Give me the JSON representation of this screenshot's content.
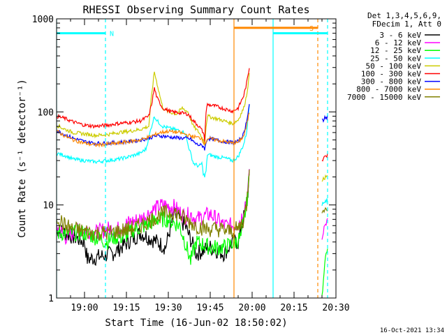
{
  "chart_data": {
    "type": "line",
    "title": "RHESSI Observing Summary Count Rates",
    "xlabel": "Start Time (16-Jun-02 18:50:02)",
    "ylabel": "Count Rate (s⁻¹ detector⁻¹)",
    "yscale": "log",
    "ylim": [
      1,
      1000
    ],
    "xlim_minutes": [
      0,
      100
    ],
    "x_ticks": [
      {
        "m": 10,
        "label": "19:00"
      },
      {
        "m": 25,
        "label": "19:15"
      },
      {
        "m": 40,
        "label": "19:30"
      },
      {
        "m": 55,
        "label": "19:45"
      },
      {
        "m": 70,
        "label": "20:00"
      },
      {
        "m": 85,
        "label": "20:15"
      },
      {
        "m": 100,
        "label": "20:30"
      }
    ],
    "y_ticks": [
      {
        "v": 1,
        "label": "1"
      },
      {
        "v": 10,
        "label": "10"
      },
      {
        "v": 100,
        "label": "100"
      },
      {
        "v": 1000,
        "label": "1000"
      }
    ],
    "info_lines": [
      "Det 1,3,4,5,6,9,",
      "FDecim 1, Att 0"
    ],
    "legend_position": "right",
    "series": [
      {
        "name": "3 - 6 keV",
        "color": "#000000",
        "points": [
          [
            0,
            5.5
          ],
          [
            10,
            4
          ],
          [
            11,
            2.6
          ],
          [
            20,
            3
          ],
          [
            30,
            5
          ],
          [
            36,
            4
          ],
          [
            39,
            3.5
          ],
          [
            42,
            8
          ],
          [
            46,
            6
          ],
          [
            50,
            3
          ],
          [
            55,
            3.5
          ],
          [
            60,
            3
          ],
          [
            63,
            4
          ],
          [
            65,
            4
          ],
          [
            68,
            10
          ],
          [
            69,
            20
          ]
        ]
      },
      {
        "name": "6 - 12 keV",
        "color": "#ff00ff",
        "points": [
          [
            0,
            6
          ],
          [
            3,
            4.5
          ],
          [
            6,
            5
          ],
          [
            10,
            5.5
          ],
          [
            14,
            5
          ],
          [
            18,
            5.5
          ],
          [
            22,
            5.5
          ],
          [
            26,
            6.5
          ],
          [
            30,
            7
          ],
          [
            35,
            9
          ],
          [
            38,
            10
          ],
          [
            42,
            9.5
          ],
          [
            46,
            7.5
          ],
          [
            48,
            8
          ],
          [
            50,
            7
          ],
          [
            55,
            8
          ],
          [
            60,
            6
          ],
          [
            64,
            6
          ],
          [
            66,
            7
          ],
          [
            68,
            12
          ],
          [
            69,
            20
          ]
        ]
      },
      {
        "name": "12 - 25 keV",
        "color": "#00ff00",
        "points": [
          [
            0,
            5
          ],
          [
            5,
            5
          ],
          [
            10,
            5
          ],
          [
            14,
            4.5
          ],
          [
            18,
            4
          ],
          [
            20,
            4.5
          ],
          [
            24,
            4.5
          ],
          [
            28,
            5.5
          ],
          [
            32,
            6
          ],
          [
            36,
            7
          ],
          [
            40,
            7
          ],
          [
            44,
            6
          ],
          [
            46,
            4
          ],
          [
            48,
            2.5
          ],
          [
            50,
            4
          ],
          [
            55,
            3.5
          ],
          [
            60,
            3.5
          ],
          [
            64,
            4
          ],
          [
            66,
            4.5
          ],
          [
            68,
            10
          ],
          [
            69,
            20
          ]
        ]
      },
      {
        "name": "25 - 50 keV",
        "color": "#00ffff",
        "points": [
          [
            0,
            36
          ],
          [
            3,
            34
          ],
          [
            6,
            31
          ],
          [
            10,
            30
          ],
          [
            14,
            29
          ],
          [
            18,
            30
          ],
          [
            22,
            31
          ],
          [
            26,
            33
          ],
          [
            30,
            36
          ],
          [
            32,
            40
          ],
          [
            34,
            70
          ],
          [
            35,
            90
          ],
          [
            36,
            80
          ],
          [
            38,
            70
          ],
          [
            41,
            66
          ],
          [
            44,
            63
          ],
          [
            46,
            60
          ],
          [
            47,
            45
          ],
          [
            49,
            28
          ],
          [
            51,
            26
          ],
          [
            52,
            28
          ],
          [
            52.5,
            22
          ],
          [
            53,
            20
          ],
          [
            53.5,
            23
          ],
          [
            54,
            35
          ],
          [
            57,
            33
          ],
          [
            60,
            32
          ],
          [
            63,
            30
          ],
          [
            65,
            33
          ],
          [
            67,
            45
          ],
          [
            68,
            60
          ],
          [
            69,
            120
          ]
        ]
      },
      {
        "name": "50 - 100 keV",
        "color": "#cccc00",
        "points": [
          [
            0,
            72
          ],
          [
            3,
            65
          ],
          [
            6,
            60
          ],
          [
            10,
            58
          ],
          [
            14,
            56
          ],
          [
            18,
            57
          ],
          [
            22,
            60
          ],
          [
            26,
            62
          ],
          [
            30,
            65
          ],
          [
            33,
            70
          ],
          [
            34,
            150
          ],
          [
            35,
            270
          ],
          [
            36,
            200
          ],
          [
            38,
            110
          ],
          [
            40,
            100
          ],
          [
            43,
            95
          ],
          [
            45,
            110
          ],
          [
            47,
            100
          ],
          [
            49,
            70
          ],
          [
            51,
            60
          ],
          [
            52.5,
            50
          ],
          [
            53,
            45
          ],
          [
            53.5,
            70
          ],
          [
            54,
            90
          ],
          [
            57,
            85
          ],
          [
            60,
            80
          ],
          [
            63,
            75
          ],
          [
            65,
            82
          ],
          [
            67,
            110
          ],
          [
            68,
            150
          ],
          [
            69,
            250
          ]
        ]
      },
      {
        "name": "100 - 300 keV",
        "color": "#ff0000",
        "points": [
          [
            0,
            90
          ],
          [
            3,
            85
          ],
          [
            6,
            78
          ],
          [
            10,
            72
          ],
          [
            14,
            70
          ],
          [
            18,
            72
          ],
          [
            22,
            75
          ],
          [
            26,
            77
          ],
          [
            30,
            80
          ],
          [
            33,
            90
          ],
          [
            34,
            120
          ],
          [
            35,
            180
          ],
          [
            36,
            140
          ],
          [
            38,
            110
          ],
          [
            41,
            100
          ],
          [
            44,
            98
          ],
          [
            47,
            95
          ],
          [
            49,
            80
          ],
          [
            51,
            70
          ],
          [
            52.5,
            60
          ],
          [
            53,
            50
          ],
          [
            53.5,
            100
          ],
          [
            54,
            120
          ],
          [
            57,
            115
          ],
          [
            60,
            108
          ],
          [
            63,
            102
          ],
          [
            65,
            110
          ],
          [
            67,
            150
          ],
          [
            68,
            200
          ],
          [
            69,
            300
          ]
        ]
      },
      {
        "name": "300 - 800 keV",
        "color": "#0000ff",
        "points": [
          [
            0,
            63
          ],
          [
            3,
            57
          ],
          [
            6,
            52
          ],
          [
            10,
            48
          ],
          [
            14,
            46
          ],
          [
            18,
            46
          ],
          [
            22,
            47
          ],
          [
            26,
            48
          ],
          [
            30,
            50
          ],
          [
            33,
            52
          ],
          [
            35,
            55
          ],
          [
            38,
            55
          ],
          [
            42,
            53
          ],
          [
            46,
            52
          ],
          [
            48,
            51
          ],
          [
            50,
            45
          ],
          [
            52.5,
            43
          ],
          [
            53,
            40
          ],
          [
            54,
            52
          ],
          [
            57,
            50
          ],
          [
            60,
            48
          ],
          [
            63,
            47
          ],
          [
            65,
            48
          ],
          [
            67,
            58
          ],
          [
            68,
            80
          ],
          [
            69,
            120
          ]
        ]
      },
      {
        "name": "800 - 7000 keV",
        "color": "#ff8800",
        "points": [
          [
            0,
            62
          ],
          [
            3,
            55
          ],
          [
            6,
            50
          ],
          [
            10,
            46
          ],
          [
            14,
            44
          ],
          [
            18,
            45
          ],
          [
            22,
            46
          ],
          [
            26,
            48
          ],
          [
            30,
            50
          ],
          [
            34,
            55
          ],
          [
            37,
            60
          ],
          [
            40,
            62
          ],
          [
            44,
            60
          ],
          [
            48,
            55
          ],
          [
            52,
            52
          ],
          [
            53,
            45
          ],
          [
            54,
            52
          ],
          [
            57,
            50
          ],
          [
            60,
            48
          ],
          [
            63,
            46
          ],
          [
            65,
            47
          ],
          [
            67,
            55
          ],
          [
            68,
            70
          ],
          [
            69,
            100
          ]
        ]
      },
      {
        "name": "7000 - 15000 keV",
        "color": "#808000",
        "points": [
          [
            0,
            7.5
          ],
          [
            3,
            6
          ],
          [
            6,
            5.5
          ],
          [
            10,
            5.2
          ],
          [
            14,
            5
          ],
          [
            18,
            5
          ],
          [
            22,
            5.2
          ],
          [
            26,
            5.5
          ],
          [
            30,
            6
          ],
          [
            34,
            7
          ],
          [
            38,
            8
          ],
          [
            42,
            8.5
          ],
          [
            46,
            7
          ],
          [
            50,
            6
          ],
          [
            54,
            5.5
          ],
          [
            58,
            5.5
          ],
          [
            62,
            5.2
          ],
          [
            65,
            5.5
          ],
          [
            67,
            7
          ],
          [
            68,
            10
          ],
          [
            69,
            25
          ]
        ]
      }
    ],
    "late_segments": [
      {
        "series": 1,
        "points": [
          [
            95,
            4.5
          ],
          [
            96,
            6
          ],
          [
            97,
            7
          ]
        ]
      },
      {
        "series": 2,
        "points": [
          [
            95,
            1
          ],
          [
            96,
            2.5
          ],
          [
            97,
            3.5
          ]
        ]
      },
      {
        "series": 3,
        "points": [
          [
            95,
            10
          ],
          [
            96,
            11
          ],
          [
            97,
            11
          ]
        ]
      },
      {
        "series": 4,
        "points": [
          [
            95,
            18
          ],
          [
            96,
            20
          ],
          [
            97,
            22
          ]
        ]
      },
      {
        "series": 5,
        "points": [
          [
            95,
            30
          ],
          [
            96,
            32
          ],
          [
            97,
            35
          ]
        ]
      },
      {
        "series": 6,
        "points": [
          [
            95,
            80
          ],
          [
            96,
            85
          ],
          [
            97,
            90
          ]
        ]
      },
      {
        "series": 8,
        "points": [
          [
            95,
            8
          ],
          [
            96,
            9
          ],
          [
            97,
            9
          ]
        ]
      }
    ],
    "attenuator_lines": [
      {
        "type": "solid",
        "color": "#00ffff",
        "m": 0
      },
      {
        "type": "dashed",
        "color": "#00ffff",
        "m": 17.5
      },
      {
        "type": "solid",
        "color": "#ff8800",
        "m": 63.5
      },
      {
        "type": "solid",
        "color": "#00ffff",
        "m": 77.5
      },
      {
        "type": "dashed",
        "color": "#ff8800",
        "m": 93.5
      },
      {
        "type": "dashed",
        "color": "#00ffff",
        "m": 97
      }
    ],
    "flag_bars": [
      {
        "label": "N",
        "color": "#00ffff",
        "m0": 0,
        "m1": 17.5,
        "v": 700
      },
      {
        "label": "S",
        "color": "#ff8800",
        "m0": 63.5,
        "m1": 93.5,
        "v": 800
      },
      {
        "label": "",
        "color": "#00ffff",
        "m0": 77.5,
        "m1": 97,
        "v": 700
      }
    ]
  },
  "footer": {
    "timestamp": "16-Oct-2021 13:34"
  }
}
